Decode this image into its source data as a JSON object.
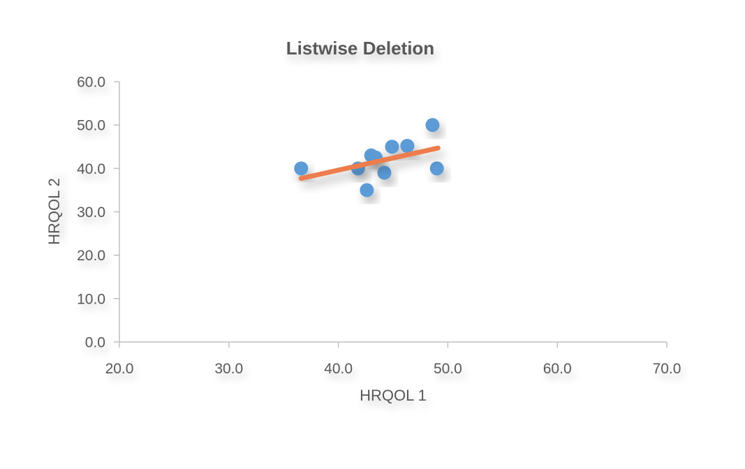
{
  "chart_data": {
    "type": "scatter",
    "title": "Listwise Deletion",
    "xlabel": "HRQOL 1",
    "ylabel": "HRQOL 2",
    "xlim": [
      20,
      70
    ],
    "ylim": [
      0,
      60
    ],
    "x_ticks": [
      "20.0",
      "30.0",
      "40.0",
      "50.0",
      "60.0",
      "70.0"
    ],
    "y_ticks": [
      "0.0",
      "10.0",
      "20.0",
      "30.0",
      "40.0",
      "50.0",
      "60.0"
    ],
    "grid": false,
    "legend": "none",
    "series": [
      {
        "points": [
          {
            "x": 36.6,
            "y": 40.0
          },
          {
            "x": 41.8,
            "y": 40.0
          },
          {
            "x": 42.6,
            "y": 35.0
          },
          {
            "x": 43.0,
            "y": 43.0
          },
          {
            "x": 43.4,
            "y": 42.5
          },
          {
            "x": 44.2,
            "y": 39.0
          },
          {
            "x": 44.9,
            "y": 45.0
          },
          {
            "x": 46.3,
            "y": 45.2
          },
          {
            "x": 48.6,
            "y": 50.0
          },
          {
            "x": 49.0,
            "y": 40.0
          }
        ],
        "color": "#5B9BD5"
      }
    ],
    "trendline": {
      "type": "linear",
      "from": {
        "x": 36.6,
        "y": 37.7
      },
      "to": {
        "x": 49.1,
        "y": 44.7
      },
      "color": "#ED7D4E"
    },
    "axis_color": "#BFBFBF",
    "text_color": "#595959"
  }
}
